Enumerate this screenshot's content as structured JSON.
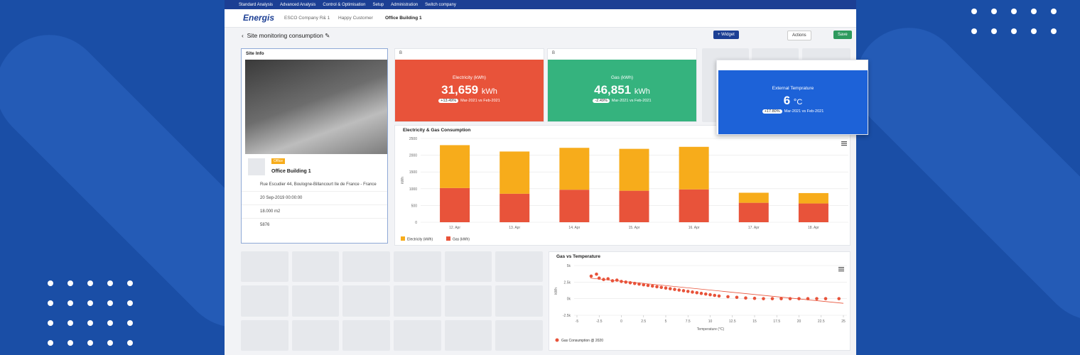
{
  "nav": {
    "menu": [
      "Standard Analysis",
      "Advanced Analysis",
      "Control & Optimisation",
      "Setup",
      "Administration",
      "Switch company"
    ]
  },
  "breadcrumb": {
    "logo": "Energis",
    "items": [
      "ESCO Company R& 1",
      "Happy Customer",
      "Office Building 1"
    ]
  },
  "page": {
    "title": "Site monitoring consumption",
    "buttons": [
      "+ Widget",
      "Actions",
      "Save"
    ]
  },
  "site_info": {
    "title": "Site Info",
    "tag": "Office",
    "name": "Office Building 1",
    "address": "Rue Escudier 44, Boulogne-Billancourt Ile de France - France",
    "date": "20 Sep-2019 00:00:00",
    "area": "18.000 m2",
    "count": "5876"
  },
  "widget_headers": [
    "B",
    "B"
  ],
  "kpis": [
    {
      "title": "Electricity (kWh)",
      "value": "31,659",
      "unit": "kWh",
      "change": "+13.49%",
      "period": "Mar-2021 vs Feb-2021"
    },
    {
      "title": "Gas (kWh)",
      "value": "46,851",
      "unit": "kWh",
      "change": "-2.49%",
      "period": "Mar-2021 vs Feb-2021"
    },
    {
      "title": "External Temprature",
      "value": "6",
      "unit": "°C",
      "change": "+17.80%",
      "period": "Mar-2021 vs Feb-2021"
    }
  ],
  "chart_data": [
    {
      "type": "bar",
      "stacked": true,
      "title": "Electricity & Gas Consumption",
      "y_label": "kWh",
      "categories": [
        "12. Apr",
        "13. Apr",
        "14. Apr",
        "15. Apr",
        "16. Apr",
        "17. Apr",
        "18. Apr"
      ],
      "series": [
        {
          "name": "Electricity (kWh)",
          "color": "#f7ac1b",
          "values": [
            1280,
            1260,
            1250,
            1250,
            1270,
            300,
            310
          ]
        },
        {
          "name": "Gas (kWh)",
          "color": "#e8533a",
          "values": [
            1020,
            850,
            970,
            940,
            980,
            580,
            560
          ]
        }
      ],
      "ylim": [
        0,
        2500
      ],
      "yticks": [
        0,
        500,
        1000,
        1500,
        2000,
        2500
      ],
      "grid": true
    },
    {
      "type": "scatter",
      "title": "Gas vs Temperature",
      "x_label": "Temperature (°C)",
      "y_label": "kWh",
      "series": [
        {
          "name": "Gas Consumption @ 2020",
          "color": "#e8533a",
          "x": [
            -3.4,
            -2.8,
            -2.5,
            -2,
            -1.5,
            -1,
            -0.5,
            0,
            0.5,
            1,
            1.5,
            2,
            2.5,
            3,
            3.5,
            4,
            4.5,
            5,
            5.5,
            6,
            6.5,
            7,
            7.5,
            8,
            8.5,
            9,
            9.5,
            10,
            10.5,
            11,
            12,
            13,
            14,
            15,
            16,
            17,
            18,
            19,
            20,
            21,
            22,
            23,
            24.5
          ],
          "values": [
            3400,
            3700,
            3100,
            2900,
            3000,
            2700,
            2800,
            2600,
            2500,
            2400,
            2300,
            2200,
            2100,
            2000,
            1900,
            1800,
            1700,
            1600,
            1500,
            1400,
            1300,
            1200,
            1100,
            1000,
            900,
            800,
            700,
            600,
            500,
            400,
            300,
            200,
            100,
            50,
            0,
            0,
            0,
            0,
            0,
            0,
            0,
            0,
            0
          ]
        }
      ],
      "trendline": {
        "x": [
          -3.5,
          25
        ],
        "y": [
          3100,
          -700
        ]
      },
      "xlim": [
        -5,
        25
      ],
      "xticks": [
        -5,
        -2.5,
        0,
        2.5,
        5,
        7.5,
        10,
        12.5,
        15,
        17.5,
        20,
        22.5,
        25
      ],
      "ylim": [
        -2500,
        5000
      ],
      "yticks": [
        {
          "value": -2500,
          "label": "-2.5k"
        },
        {
          "value": 0,
          "label": "0k"
        },
        {
          "value": 2500,
          "label": "2.5k"
        },
        {
          "value": 5000,
          "label": "5k"
        }
      ]
    }
  ]
}
